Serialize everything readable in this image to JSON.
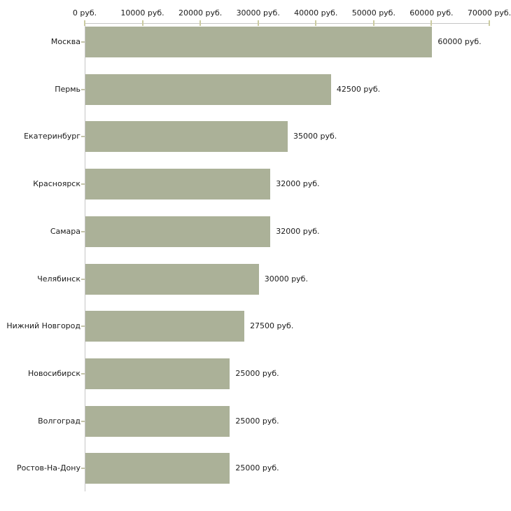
{
  "chart_data": {
    "type": "bar",
    "orientation": "horizontal",
    "title": "",
    "xlabel": "",
    "ylabel": "",
    "grid": false,
    "legend": false,
    "categories": [
      "Москва",
      "Пермь",
      "Екатеринбург",
      "Красноярск",
      "Самара",
      "Челябинск",
      "Нижний Новгород",
      "Новосибирск",
      "Волгоград",
      "Ростов-На-Дону"
    ],
    "values": [
      60000,
      42500,
      35000,
      32000,
      32000,
      30000,
      27500,
      25000,
      25000,
      25000
    ],
    "value_labels": [
      "60000 руб.",
      "42500 руб.",
      "35000 руб.",
      "32000 руб.",
      "32000 руб.",
      "30000 руб.",
      "27500 руб.",
      "25000 руб.",
      "25000 руб.",
      "25000 руб."
    ],
    "x_ticks": [
      0,
      10000,
      20000,
      30000,
      40000,
      50000,
      60000,
      70000
    ],
    "x_tick_labels": [
      "0 руб.",
      "10000 руб.",
      "20000 руб.",
      "30000 руб.",
      "40000 руб.",
      "50000 руб.",
      "60000 руб.",
      "70000 руб."
    ],
    "xlim": [
      0,
      70000
    ],
    "colors": {
      "bar_fill": "#abb198",
      "axis_line": "#c6c6c6",
      "value_tick": "#cbcba1",
      "category_tick": "#c3c3a8",
      "text": "#1a1a1a",
      "background": "#ffffff"
    }
  }
}
